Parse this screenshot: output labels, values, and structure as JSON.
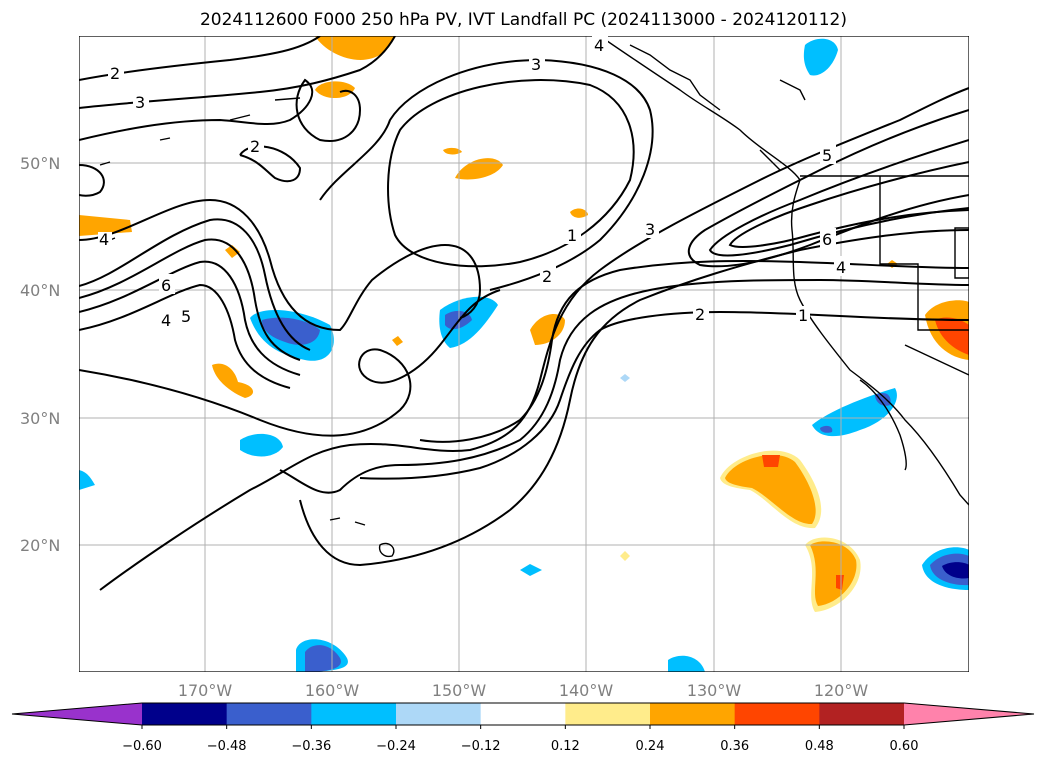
{
  "title": "2024112600 F000 250 hPa PV, IVT Landfall PC (2024113000 - 2024120112)",
  "lat_labels": [
    "50°N",
    "40°N",
    "30°N",
    "20°N"
  ],
  "lon_labels": [
    "170°W",
    "160°W",
    "150°W",
    "140°W",
    "130°W",
    "120°W"
  ],
  "colorbar": {
    "colors": [
      "#9932cc",
      "#00008b",
      "#3a5fcd",
      "#00bfff",
      "#add8f7",
      "#ffffff",
      "#ffec8b",
      "#ffa500",
      "#ff4500",
      "#b22222",
      "#ff82ab"
    ],
    "tick_labels": [
      "−0.60",
      "−0.48",
      "−0.36",
      "−0.24",
      "−0.12",
      "0.12",
      "0.24",
      "0.36",
      "0.48",
      "0.60"
    ]
  },
  "contour_labels": [
    "2",
    "3",
    "2",
    "1",
    "2",
    "3",
    "4",
    "5",
    "6",
    "4",
    "6",
    "5",
    "4",
    "2",
    "1",
    "4"
  ]
}
